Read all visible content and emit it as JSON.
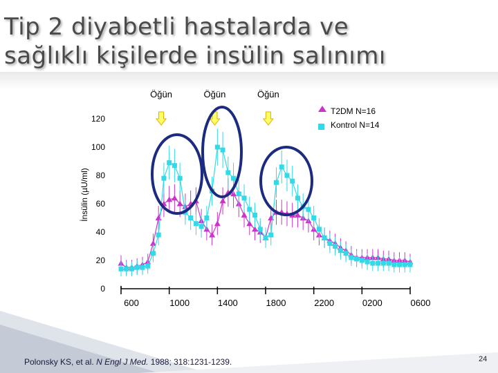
{
  "slide": {
    "title_line1": "Tip 2 diyabetli hastalarda ve",
    "title_line2": "sağlıklı kişilerde insülin salınımı",
    "citation_authors": "Polonsky KS, et al. ",
    "citation_journal": "N Engl J Med.",
    "citation_rest": " 1988; 318:1231-1239.",
    "page_number": "24"
  },
  "colors": {
    "t2dm": "#cc33cc",
    "control": "#33d9e6",
    "arrow_fill": "#ffff66",
    "arrow_stroke": "#e0b000",
    "circle": "#1c2a80"
  },
  "chart_data": {
    "type": "line",
    "ylabel": "İnsülin (µU/ml)",
    "yticks": [
      0,
      20,
      40,
      60,
      80,
      100,
      120
    ],
    "ylim": [
      0,
      130
    ],
    "xticks": [
      "600",
      "1000",
      "1400",
      "1800",
      "2200",
      "0200",
      "0600"
    ],
    "meals": [
      "Öğün",
      "Öğün",
      "Öğün"
    ],
    "meal_positions": [
      900,
      1300,
      1700
    ],
    "legend_position": "top-right",
    "highlight_circles": 3,
    "series": [
      {
        "name": "T2DM N=16",
        "marker": "triangle",
        "points": [
          [
            600,
            18
          ],
          [
            640,
            15
          ],
          [
            680,
            15
          ],
          [
            720,
            16
          ],
          [
            760,
            17
          ],
          [
            800,
            19
          ],
          [
            840,
            32
          ],
          [
            880,
            50
          ],
          [
            920,
            60
          ],
          [
            960,
            63
          ],
          [
            1000,
            64
          ],
          [
            1040,
            60
          ],
          [
            1080,
            58
          ],
          [
            1120,
            60
          ],
          [
            1160,
            62
          ],
          [
            1200,
            48
          ],
          [
            1240,
            42
          ],
          [
            1280,
            38
          ],
          [
            1320,
            46
          ],
          [
            1360,
            62
          ],
          [
            1400,
            68
          ],
          [
            1440,
            67
          ],
          [
            1480,
            60
          ],
          [
            1520,
            52
          ],
          [
            1560,
            46
          ],
          [
            1600,
            42
          ],
          [
            1640,
            40
          ],
          [
            1680,
            36
          ],
          [
            1720,
            50
          ],
          [
            1760,
            54
          ],
          [
            1800,
            54
          ],
          [
            1840,
            53
          ],
          [
            1880,
            52
          ],
          [
            1920,
            52
          ],
          [
            1960,
            50
          ],
          [
            2000,
            48
          ],
          [
            2040,
            42
          ],
          [
            2080,
            38
          ],
          [
            2120,
            36
          ],
          [
            2160,
            34
          ],
          [
            2200,
            32
          ],
          [
            2240,
            29
          ],
          [
            2280,
            27
          ],
          [
            2320,
            24
          ],
          [
            2360,
            22
          ],
          [
            2400,
            22
          ],
          [
            2440,
            22
          ],
          [
            2480,
            22
          ],
          [
            2520,
            22
          ],
          [
            2560,
            21
          ],
          [
            2600,
            21
          ],
          [
            2640,
            20
          ],
          [
            2680,
            20
          ],
          [
            2720,
            20
          ],
          [
            2760,
            19
          ]
        ]
      },
      {
        "name": "Kontrol N=14",
        "marker": "square",
        "points": [
          [
            600,
            14
          ],
          [
            640,
            14
          ],
          [
            680,
            14
          ],
          [
            720,
            15
          ],
          [
            760,
            15
          ],
          [
            800,
            16
          ],
          [
            840,
            25
          ],
          [
            880,
            38
          ],
          [
            920,
            78
          ],
          [
            960,
            89
          ],
          [
            1000,
            87
          ],
          [
            1040,
            78
          ],
          [
            1080,
            54
          ],
          [
            1120,
            50
          ],
          [
            1160,
            46
          ],
          [
            1200,
            44
          ],
          [
            1240,
            50
          ],
          [
            1280,
            69
          ],
          [
            1320,
            100
          ],
          [
            1360,
            98
          ],
          [
            1400,
            82
          ],
          [
            1440,
            78
          ],
          [
            1480,
            67
          ],
          [
            1520,
            64
          ],
          [
            1560,
            56
          ],
          [
            1600,
            52
          ],
          [
            1640,
            42
          ],
          [
            1680,
            36
          ],
          [
            1720,
            38
          ],
          [
            1760,
            75
          ],
          [
            1800,
            86
          ],
          [
            1840,
            80
          ],
          [
            1880,
            76
          ],
          [
            1920,
            64
          ],
          [
            1960,
            58
          ],
          [
            2000,
            56
          ],
          [
            2040,
            50
          ],
          [
            2080,
            42
          ],
          [
            2120,
            36
          ],
          [
            2160,
            32
          ],
          [
            2200,
            30
          ],
          [
            2240,
            27
          ],
          [
            2280,
            25
          ],
          [
            2320,
            22
          ],
          [
            2360,
            21
          ],
          [
            2400,
            20
          ],
          [
            2440,
            19
          ],
          [
            2480,
            18
          ],
          [
            2520,
            18
          ],
          [
            2560,
            18
          ],
          [
            2600,
            18
          ],
          [
            2640,
            17
          ],
          [
            2680,
            17
          ],
          [
            2720,
            17
          ],
          [
            2760,
            17
          ]
        ]
      }
    ]
  }
}
